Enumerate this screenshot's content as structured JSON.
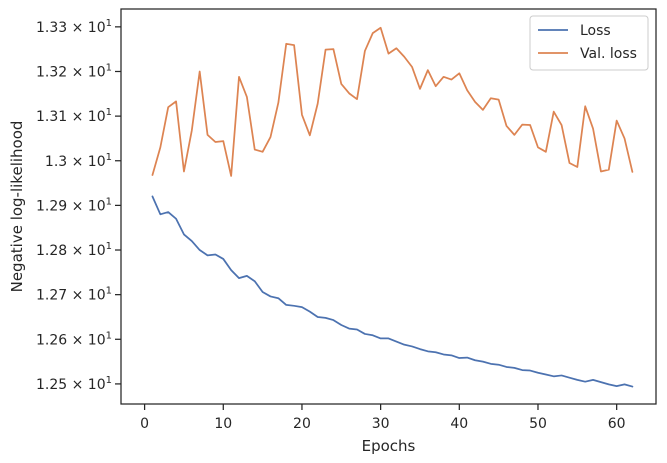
{
  "chart_data": {
    "type": "line",
    "xlabel": "Epochs",
    "ylabel": "Negative log-likelihood",
    "xlim": [
      -3,
      65
    ],
    "ylim": [
      12.455,
      13.34
    ],
    "x_ticks": [
      0,
      10,
      20,
      30,
      40,
      50,
      60
    ],
    "x_tick_labels": [
      "0",
      "10",
      "20",
      "30",
      "40",
      "50",
      "60"
    ],
    "y_ticks": [
      12.5,
      12.6,
      12.7,
      12.8,
      12.9,
      13.0,
      13.1,
      13.2,
      13.3
    ],
    "y_tick_labels": [
      {
        "mantissa": "1.25",
        "exponent": "1"
      },
      {
        "mantissa": "1.26",
        "exponent": "1"
      },
      {
        "mantissa": "1.27",
        "exponent": "1"
      },
      {
        "mantissa": "1.28",
        "exponent": "1"
      },
      {
        "mantissa": "1.29",
        "exponent": "1"
      },
      {
        "mantissa": "1.3",
        "exponent": "1"
      },
      {
        "mantissa": "1.31",
        "exponent": "1"
      },
      {
        "mantissa": "1.32",
        "exponent": "1"
      },
      {
        "mantissa": "1.33",
        "exponent": "1"
      }
    ],
    "y_tick_times": "×",
    "y_tick_base": "10",
    "grid": false,
    "legend_position": "top-right",
    "x": [
      1,
      2,
      3,
      4,
      5,
      6,
      7,
      8,
      9,
      10,
      11,
      12,
      13,
      14,
      15,
      16,
      17,
      18,
      19,
      20,
      21,
      22,
      23,
      24,
      25,
      26,
      27,
      28,
      29,
      30,
      31,
      32,
      33,
      34,
      35,
      36,
      37,
      38,
      39,
      40,
      41,
      42,
      43,
      44,
      45,
      46,
      47,
      48,
      49,
      50,
      51,
      52,
      53,
      54,
      55,
      56,
      57,
      58,
      59,
      60,
      61,
      62
    ],
    "series": [
      {
        "name": "Loss",
        "color": "#4c72b0",
        "values": [
          12.92,
          12.88,
          12.885,
          12.87,
          12.835,
          12.82,
          12.8,
          12.788,
          12.79,
          12.78,
          12.755,
          12.737,
          12.742,
          12.73,
          12.706,
          12.696,
          12.692,
          12.677,
          12.675,
          12.672,
          12.662,
          12.65,
          12.648,
          12.643,
          12.632,
          12.624,
          12.622,
          12.612,
          12.609,
          12.602,
          12.602,
          12.595,
          12.588,
          12.584,
          12.578,
          12.573,
          12.571,
          12.566,
          12.564,
          12.558,
          12.559,
          12.553,
          12.55,
          12.545,
          12.543,
          12.538,
          12.536,
          12.531,
          12.53,
          12.525,
          12.521,
          12.517,
          12.519,
          12.514,
          12.509,
          12.505,
          12.509,
          12.504,
          12.499,
          12.495,
          12.499,
          12.494
        ]
      },
      {
        "name": "Val. loss",
        "color": "#dd8452",
        "values": [
          12.968,
          13.03,
          13.12,
          13.133,
          12.976,
          13.068,
          13.2,
          13.058,
          13.042,
          13.044,
          12.966,
          13.188,
          13.143,
          13.025,
          13.02,
          13.053,
          13.13,
          13.262,
          13.259,
          13.103,
          13.057,
          13.128,
          13.249,
          13.25,
          13.172,
          13.151,
          13.138,
          13.246,
          13.286,
          13.298,
          13.24,
          13.252,
          13.233,
          13.21,
          13.161,
          13.203,
          13.167,
          13.188,
          13.182,
          13.196,
          13.158,
          13.132,
          13.114,
          13.14,
          13.137,
          13.078,
          13.058,
          13.081,
          13.08,
          13.03,
          13.02,
          13.11,
          13.08,
          12.995,
          12.986,
          13.122,
          13.072,
          12.976,
          12.98,
          13.09,
          13.05,
          12.975
        ]
      }
    ]
  }
}
